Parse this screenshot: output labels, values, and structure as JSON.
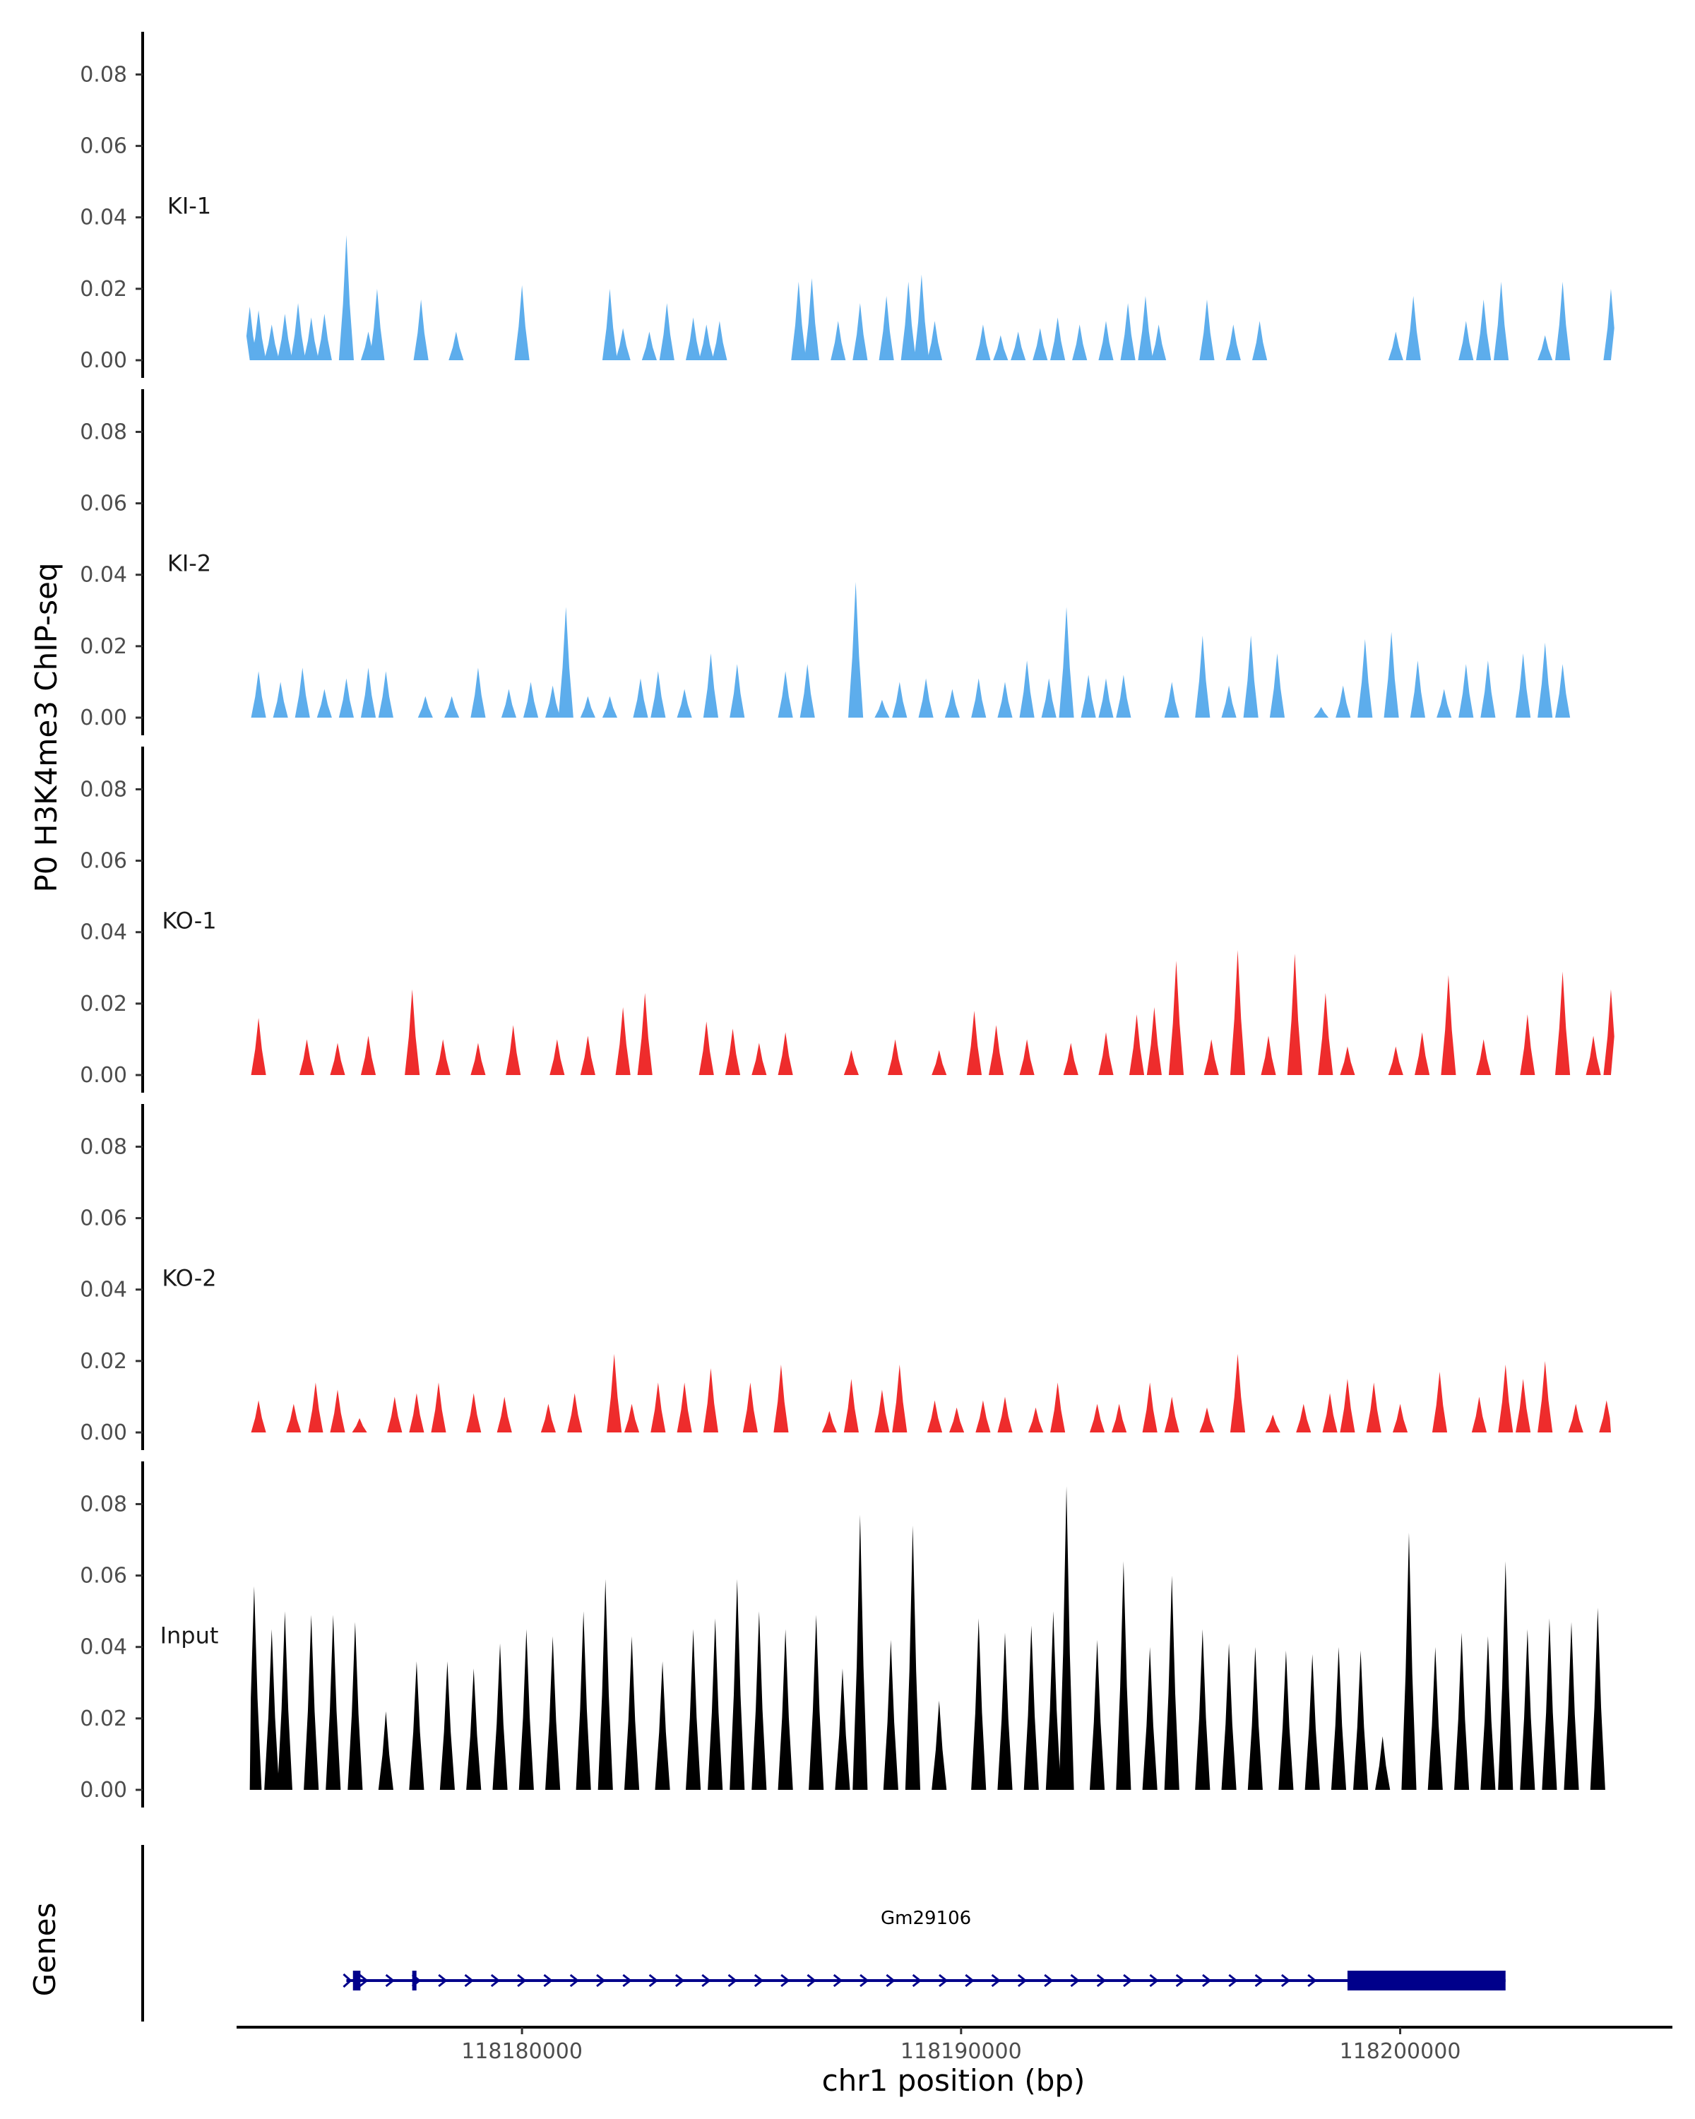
{
  "chart_data": {
    "type": "area",
    "title": "",
    "ylabel": "P0 H3K4me3 ChIP-seq",
    "xlabel": "chr1 position (bp)",
    "genes_label": "Genes",
    "xlim": [
      118173500,
      118206200
    ],
    "ylim": [
      0,
      0.088
    ],
    "x_ticks": [
      118180000,
      118190000,
      118200000
    ],
    "x_tick_labels": [
      "118180000",
      "118190000",
      "118200000"
    ],
    "y_ticks": [
      0,
      0.02,
      0.04,
      0.06,
      0.08
    ],
    "y_tick_labels": [
      "0.00",
      "0.02",
      "0.04",
      "0.06",
      "0.08"
    ],
    "data_range": [
      118173800,
      118204800
    ],
    "tracks": [
      {
        "name": "KI-1",
        "color": "#5DADEC",
        "peaks": [
          [
            118173800,
            0.015
          ],
          [
            118174000,
            0.014
          ],
          [
            118174300,
            0.01
          ],
          [
            118174600,
            0.013
          ],
          [
            118174900,
            0.016
          ],
          [
            118175200,
            0.012
          ],
          [
            118175500,
            0.013
          ],
          [
            118176000,
            0.035
          ],
          [
            118176500,
            0.008
          ],
          [
            118176700,
            0.02
          ],
          [
            118177700,
            0.017
          ],
          [
            118178500,
            0.008
          ],
          [
            118180000,
            0.021
          ],
          [
            118182000,
            0.02
          ],
          [
            118182300,
            0.009
          ],
          [
            118182900,
            0.008
          ],
          [
            118183300,
            0.016
          ],
          [
            118183900,
            0.012
          ],
          [
            118184200,
            0.01
          ],
          [
            118184500,
            0.011
          ],
          [
            118186300,
            0.022
          ],
          [
            118186600,
            0.023
          ],
          [
            118187200,
            0.011
          ],
          [
            118187700,
            0.016
          ],
          [
            118188300,
            0.018
          ],
          [
            118188800,
            0.022
          ],
          [
            118189100,
            0.024
          ],
          [
            118189400,
            0.011
          ],
          [
            118190500,
            0.01
          ],
          [
            118190900,
            0.007
          ],
          [
            118191300,
            0.008
          ],
          [
            118191800,
            0.009
          ],
          [
            118192200,
            0.012
          ],
          [
            118192700,
            0.01
          ],
          [
            118193300,
            0.011
          ],
          [
            118193800,
            0.016
          ],
          [
            118194200,
            0.018
          ],
          [
            118194500,
            0.01
          ],
          [
            118195600,
            0.017
          ],
          [
            118196200,
            0.01
          ],
          [
            118196800,
            0.011
          ],
          [
            118199900,
            0.008
          ],
          [
            118200300,
            0.018
          ],
          [
            118201500,
            0.011
          ],
          [
            118201900,
            0.017
          ],
          [
            118202300,
            0.022
          ],
          [
            118203300,
            0.007
          ],
          [
            118203700,
            0.022
          ],
          [
            118204800,
            0.02
          ]
        ]
      },
      {
        "name": "KI-2",
        "color": "#5DADEC",
        "peaks": [
          [
            118174000,
            0.013
          ],
          [
            118174500,
            0.01
          ],
          [
            118175000,
            0.014
          ],
          [
            118175500,
            0.008
          ],
          [
            118176000,
            0.011
          ],
          [
            118176500,
            0.014
          ],
          [
            118176900,
            0.013
          ],
          [
            118177800,
            0.006
          ],
          [
            118178400,
            0.006
          ],
          [
            118179000,
            0.014
          ],
          [
            118179700,
            0.008
          ],
          [
            118180200,
            0.01
          ],
          [
            118180700,
            0.009
          ],
          [
            118181000,
            0.031
          ],
          [
            118181500,
            0.006
          ],
          [
            118182000,
            0.006
          ],
          [
            118182700,
            0.011
          ],
          [
            118183100,
            0.013
          ],
          [
            118183700,
            0.008
          ],
          [
            118184300,
            0.018
          ],
          [
            118184900,
            0.015
          ],
          [
            118186000,
            0.013
          ],
          [
            118186500,
            0.015
          ],
          [
            118187600,
            0.038
          ],
          [
            118188200,
            0.005
          ],
          [
            118188600,
            0.01
          ],
          [
            118189200,
            0.011
          ],
          [
            118189800,
            0.008
          ],
          [
            118190400,
            0.011
          ],
          [
            118191000,
            0.01
          ],
          [
            118191500,
            0.016
          ],
          [
            118192000,
            0.011
          ],
          [
            118192400,
            0.031
          ],
          [
            118192900,
            0.012
          ],
          [
            118193300,
            0.011
          ],
          [
            118193700,
            0.012
          ],
          [
            118194800,
            0.01
          ],
          [
            118195500,
            0.023
          ],
          [
            118196100,
            0.009
          ],
          [
            118196600,
            0.023
          ],
          [
            118197200,
            0.018
          ],
          [
            118198200,
            0.003
          ],
          [
            118198700,
            0.009
          ],
          [
            118199200,
            0.022
          ],
          [
            118199800,
            0.024
          ],
          [
            118200400,
            0.016
          ],
          [
            118201000,
            0.008
          ],
          [
            118201500,
            0.015
          ],
          [
            118202000,
            0.016
          ],
          [
            118202800,
            0.018
          ],
          [
            118203300,
            0.021
          ],
          [
            118203700,
            0.015
          ]
        ]
      },
      {
        "name": "KO-1",
        "color": "#EE2C2C",
        "peaks": [
          [
            118174000,
            0.016
          ],
          [
            118175100,
            0.01
          ],
          [
            118175800,
            0.009
          ],
          [
            118176500,
            0.011
          ],
          [
            118177500,
            0.024
          ],
          [
            118178200,
            0.01
          ],
          [
            118179000,
            0.009
          ],
          [
            118179800,
            0.014
          ],
          [
            118180800,
            0.01
          ],
          [
            118181500,
            0.011
          ],
          [
            118182300,
            0.019
          ],
          [
            118182800,
            0.023
          ],
          [
            118184200,
            0.015
          ],
          [
            118184800,
            0.013
          ],
          [
            118185400,
            0.009
          ],
          [
            118186000,
            0.012
          ],
          [
            118187500,
            0.007
          ],
          [
            118188500,
            0.01
          ],
          [
            118189500,
            0.007
          ],
          [
            118190300,
            0.018
          ],
          [
            118190800,
            0.014
          ],
          [
            118191500,
            0.01
          ],
          [
            118192500,
            0.009
          ],
          [
            118193300,
            0.012
          ],
          [
            118194000,
            0.017
          ],
          [
            118194400,
            0.019
          ],
          [
            118194900,
            0.032
          ],
          [
            118195700,
            0.01
          ],
          [
            118196300,
            0.035
          ],
          [
            118197000,
            0.011
          ],
          [
            118197600,
            0.034
          ],
          [
            118198300,
            0.023
          ],
          [
            118198800,
            0.008
          ],
          [
            118199900,
            0.008
          ],
          [
            118200500,
            0.012
          ],
          [
            118201100,
            0.028
          ],
          [
            118201900,
            0.01
          ],
          [
            118202900,
            0.017
          ],
          [
            118203700,
            0.029
          ],
          [
            118204400,
            0.011
          ],
          [
            118204800,
            0.024
          ]
        ]
      },
      {
        "name": "KO-2",
        "color": "#EE2C2C",
        "peaks": [
          [
            118174000,
            0.009
          ],
          [
            118174800,
            0.008
          ],
          [
            118175300,
            0.014
          ],
          [
            118175800,
            0.012
          ],
          [
            118176300,
            0.004
          ],
          [
            118177100,
            0.01
          ],
          [
            118177600,
            0.011
          ],
          [
            118178100,
            0.014
          ],
          [
            118178900,
            0.011
          ],
          [
            118179600,
            0.01
          ],
          [
            118180600,
            0.008
          ],
          [
            118181200,
            0.011
          ],
          [
            118182100,
            0.022
          ],
          [
            118182500,
            0.008
          ],
          [
            118183100,
            0.014
          ],
          [
            118183700,
            0.014
          ],
          [
            118184300,
            0.018
          ],
          [
            118185200,
            0.014
          ],
          [
            118185900,
            0.019
          ],
          [
            118187000,
            0.006
          ],
          [
            118187500,
            0.015
          ],
          [
            118188200,
            0.012
          ],
          [
            118188600,
            0.019
          ],
          [
            118189400,
            0.009
          ],
          [
            118189900,
            0.007
          ],
          [
            118190500,
            0.009
          ],
          [
            118191000,
            0.01
          ],
          [
            118191700,
            0.007
          ],
          [
            118192200,
            0.014
          ],
          [
            118193100,
            0.008
          ],
          [
            118193600,
            0.008
          ],
          [
            118194300,
            0.014
          ],
          [
            118194800,
            0.01
          ],
          [
            118195600,
            0.007
          ],
          [
            118196300,
            0.022
          ],
          [
            118197100,
            0.005
          ],
          [
            118197800,
            0.008
          ],
          [
            118198400,
            0.011
          ],
          [
            118198800,
            0.015
          ],
          [
            118199400,
            0.014
          ],
          [
            118200000,
            0.008
          ],
          [
            118200900,
            0.017
          ],
          [
            118201800,
            0.01
          ],
          [
            118202400,
            0.019
          ],
          [
            118202800,
            0.015
          ],
          [
            118203300,
            0.02
          ],
          [
            118204000,
            0.008
          ],
          [
            118204700,
            0.009
          ]
        ]
      },
      {
        "name": "Input",
        "color": "#000000",
        "peaks": [
          [
            118173900,
            0.057
          ],
          [
            118174300,
            0.045
          ],
          [
            118174600,
            0.05
          ],
          [
            118175200,
            0.049
          ],
          [
            118175700,
            0.049
          ],
          [
            118176200,
            0.047
          ],
          [
            118176900,
            0.022
          ],
          [
            118177600,
            0.036
          ],
          [
            118178300,
            0.036
          ],
          [
            118178900,
            0.034
          ],
          [
            118179500,
            0.041
          ],
          [
            118180100,
            0.045
          ],
          [
            118180700,
            0.043
          ],
          [
            118181400,
            0.05
          ],
          [
            118181900,
            0.059
          ],
          [
            118182500,
            0.043
          ],
          [
            118183200,
            0.036
          ],
          [
            118183900,
            0.045
          ],
          [
            118184400,
            0.048
          ],
          [
            118184900,
            0.059
          ],
          [
            118185400,
            0.05
          ],
          [
            118186000,
            0.045
          ],
          [
            118186700,
            0.049
          ],
          [
            118187300,
            0.034
          ],
          [
            118187700,
            0.077
          ],
          [
            118188400,
            0.042
          ],
          [
            118188900,
            0.074
          ],
          [
            118189500,
            0.025
          ],
          [
            118190400,
            0.048
          ],
          [
            118191000,
            0.044
          ],
          [
            118191600,
            0.046
          ],
          [
            118192100,
            0.05
          ],
          [
            118192400,
            0.085
          ],
          [
            118193100,
            0.042
          ],
          [
            118193700,
            0.064
          ],
          [
            118194300,
            0.04
          ],
          [
            118194800,
            0.06
          ],
          [
            118195500,
            0.045
          ],
          [
            118196100,
            0.041
          ],
          [
            118196700,
            0.04
          ],
          [
            118197400,
            0.039
          ],
          [
            118198000,
            0.038
          ],
          [
            118198600,
            0.04
          ],
          [
            118199100,
            0.039
          ],
          [
            118199600,
            0.015
          ],
          [
            118200200,
            0.072
          ],
          [
            118200800,
            0.04
          ],
          [
            118201400,
            0.044
          ],
          [
            118202000,
            0.043
          ],
          [
            118202400,
            0.064
          ],
          [
            118202900,
            0.045
          ],
          [
            118203400,
            0.048
          ],
          [
            118203900,
            0.047
          ],
          [
            118204500,
            0.051
          ]
        ]
      }
    ],
    "genes": [
      {
        "name": "Gm29106",
        "color": "#00008B",
        "strand": "+",
        "start": 118176000,
        "end": 118202400,
        "exons": [
          [
            118176150,
            118176320
          ],
          [
            118177500,
            118177580
          ]
        ],
        "cds": [
          118198800,
          118202400
        ]
      }
    ]
  }
}
